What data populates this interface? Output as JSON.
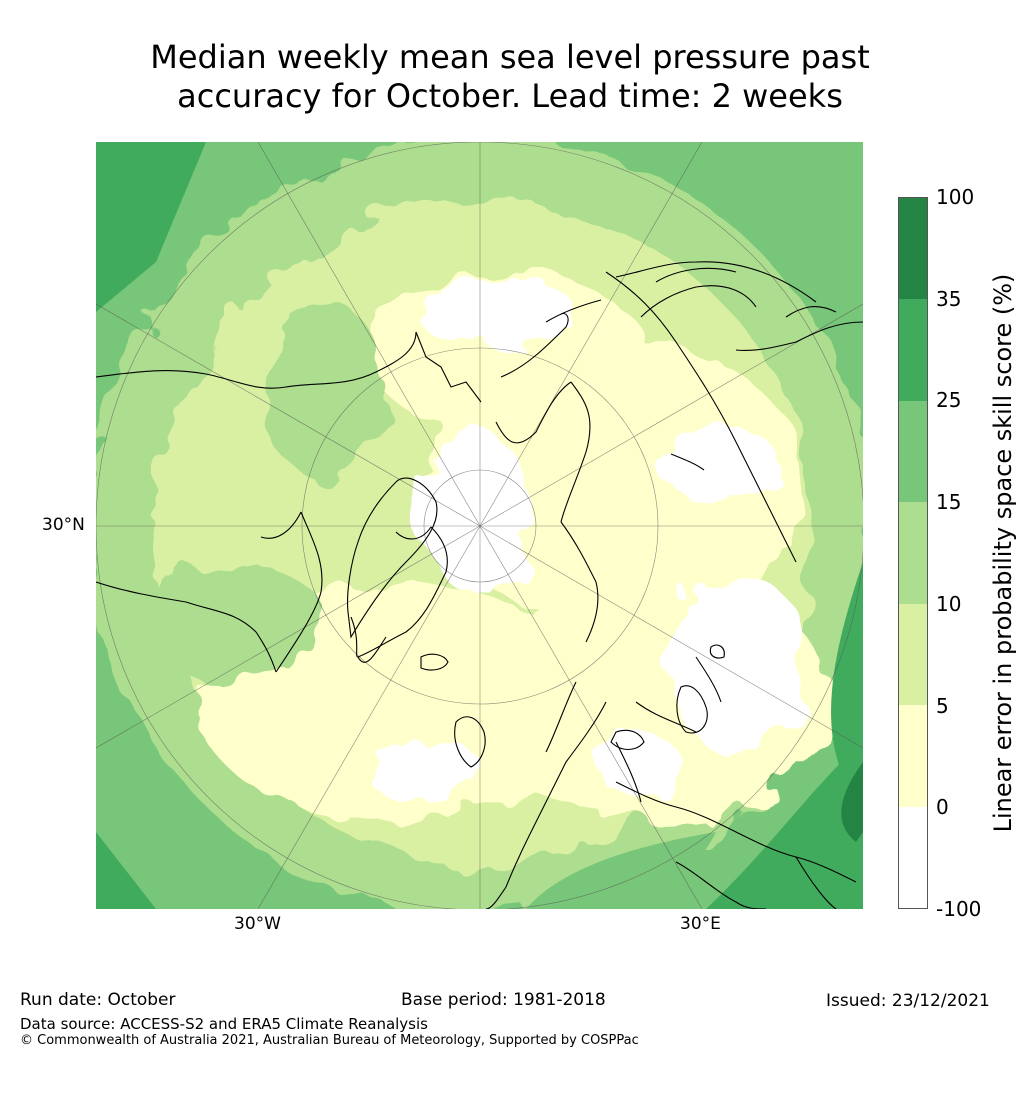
{
  "title": {
    "line1": "Median weekly mean sea level pressure past",
    "line2": "accuracy for October. Lead time: 2 weeks"
  },
  "map": {
    "projection": "north polar stereographic",
    "lat_label": "30°N",
    "lon_labels": [
      "30°W",
      "30°E"
    ]
  },
  "colorbar": {
    "label": "Linear error in probability space skill score (%)",
    "ticks": [
      "100",
      "35",
      "25",
      "15",
      "10",
      "5",
      "0",
      "-100"
    ],
    "bins": [
      {
        "range": "35 to 100",
        "color": "#238443"
      },
      {
        "range": "25 to 35",
        "color": "#41ab5d"
      },
      {
        "range": "15 to 25",
        "color": "#78c679"
      },
      {
        "range": "10 to 15",
        "color": "#addd8e"
      },
      {
        "range": "5 to 10",
        "color": "#d9f0a3"
      },
      {
        "range": "0 to 5",
        "color": "#ffffcc"
      },
      {
        "range": "-100 to 0",
        "color": "#ffffff"
      }
    ]
  },
  "footer": {
    "run_date": "Run date: October",
    "base_period": "Base period: 1981-2018",
    "issued": "Issued: 23/12/2021",
    "data_source": "Data source: ACCESS-S2 and ERA5 Climate Reanalysis",
    "copyright": "© Commonwealth of Australia 2021, Australian Bureau of Meteorology, Supported by COSPPac"
  }
}
